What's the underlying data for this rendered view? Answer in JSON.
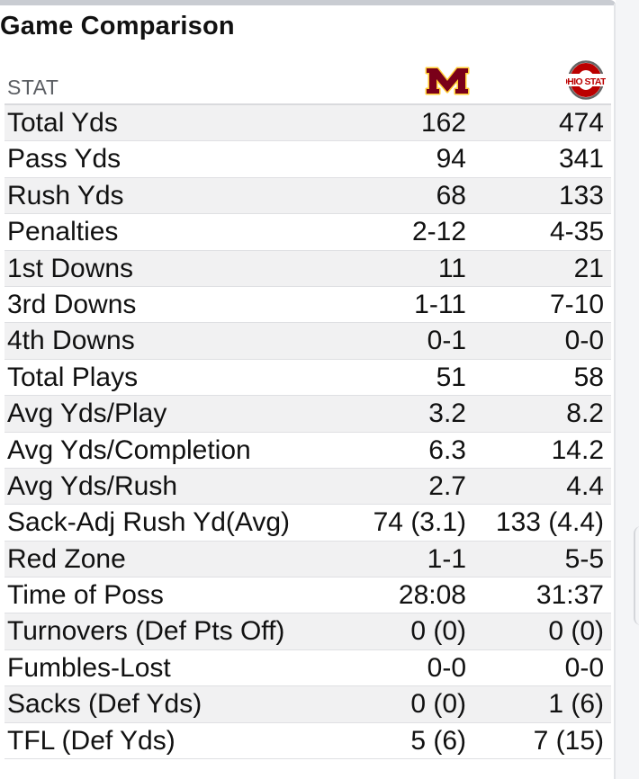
{
  "title": "Game Comparison",
  "header": {
    "stat_label": "STAT",
    "team_a_logo": "minnesota-m-logo",
    "team_b_logo": "ohio-state-logo",
    "team_b_logo_text": "OHIO STATE"
  },
  "colors": {
    "minnesota_maroon": "#7a0019",
    "minnesota_gold": "#ffcc33",
    "ohio_state_scarlet": "#bb0000",
    "ohio_state_gray": "#666666"
  },
  "rows": [
    {
      "stat": "Total Yds",
      "team_a": "162",
      "team_b": "474"
    },
    {
      "stat": "Pass Yds",
      "team_a": "94",
      "team_b": "341"
    },
    {
      "stat": "Rush Yds",
      "team_a": "68",
      "team_b": "133"
    },
    {
      "stat": "Penalties",
      "team_a": "2-12",
      "team_b": "4-35"
    },
    {
      "stat": "1st Downs",
      "team_a": "11",
      "team_b": "21"
    },
    {
      "stat": "3rd Downs",
      "team_a": "1-11",
      "team_b": "7-10"
    },
    {
      "stat": "4th Downs",
      "team_a": "0-1",
      "team_b": "0-0"
    },
    {
      "stat": "Total Plays",
      "team_a": "51",
      "team_b": "58"
    },
    {
      "stat": "Avg Yds/Play",
      "team_a": "3.2",
      "team_b": "8.2"
    },
    {
      "stat": "Avg Yds/Completion",
      "team_a": "6.3",
      "team_b": "14.2"
    },
    {
      "stat": "Avg Yds/Rush",
      "team_a": "2.7",
      "team_b": "4.4"
    },
    {
      "stat": "Sack-Adj Rush Yd(Avg)",
      "team_a": "74 (3.1)",
      "team_b": "133 (4.4)"
    },
    {
      "stat": "Red Zone",
      "team_a": "1-1",
      "team_b": "5-5"
    },
    {
      "stat": "Time of Poss",
      "team_a": "28:08",
      "team_b": "31:37"
    },
    {
      "stat": "Turnovers (Def Pts Off)",
      "team_a": "0 (0)",
      "team_b": "0 (0)"
    },
    {
      "stat": "Fumbles-Lost",
      "team_a": "0-0",
      "team_b": "0-0"
    },
    {
      "stat": "Sacks (Def Yds)",
      "team_a": "0 (0)",
      "team_b": "1 (6)"
    },
    {
      "stat": "TFL (Def Yds)",
      "team_a": "5 (6)",
      "team_b": "7 (15)"
    }
  ]
}
